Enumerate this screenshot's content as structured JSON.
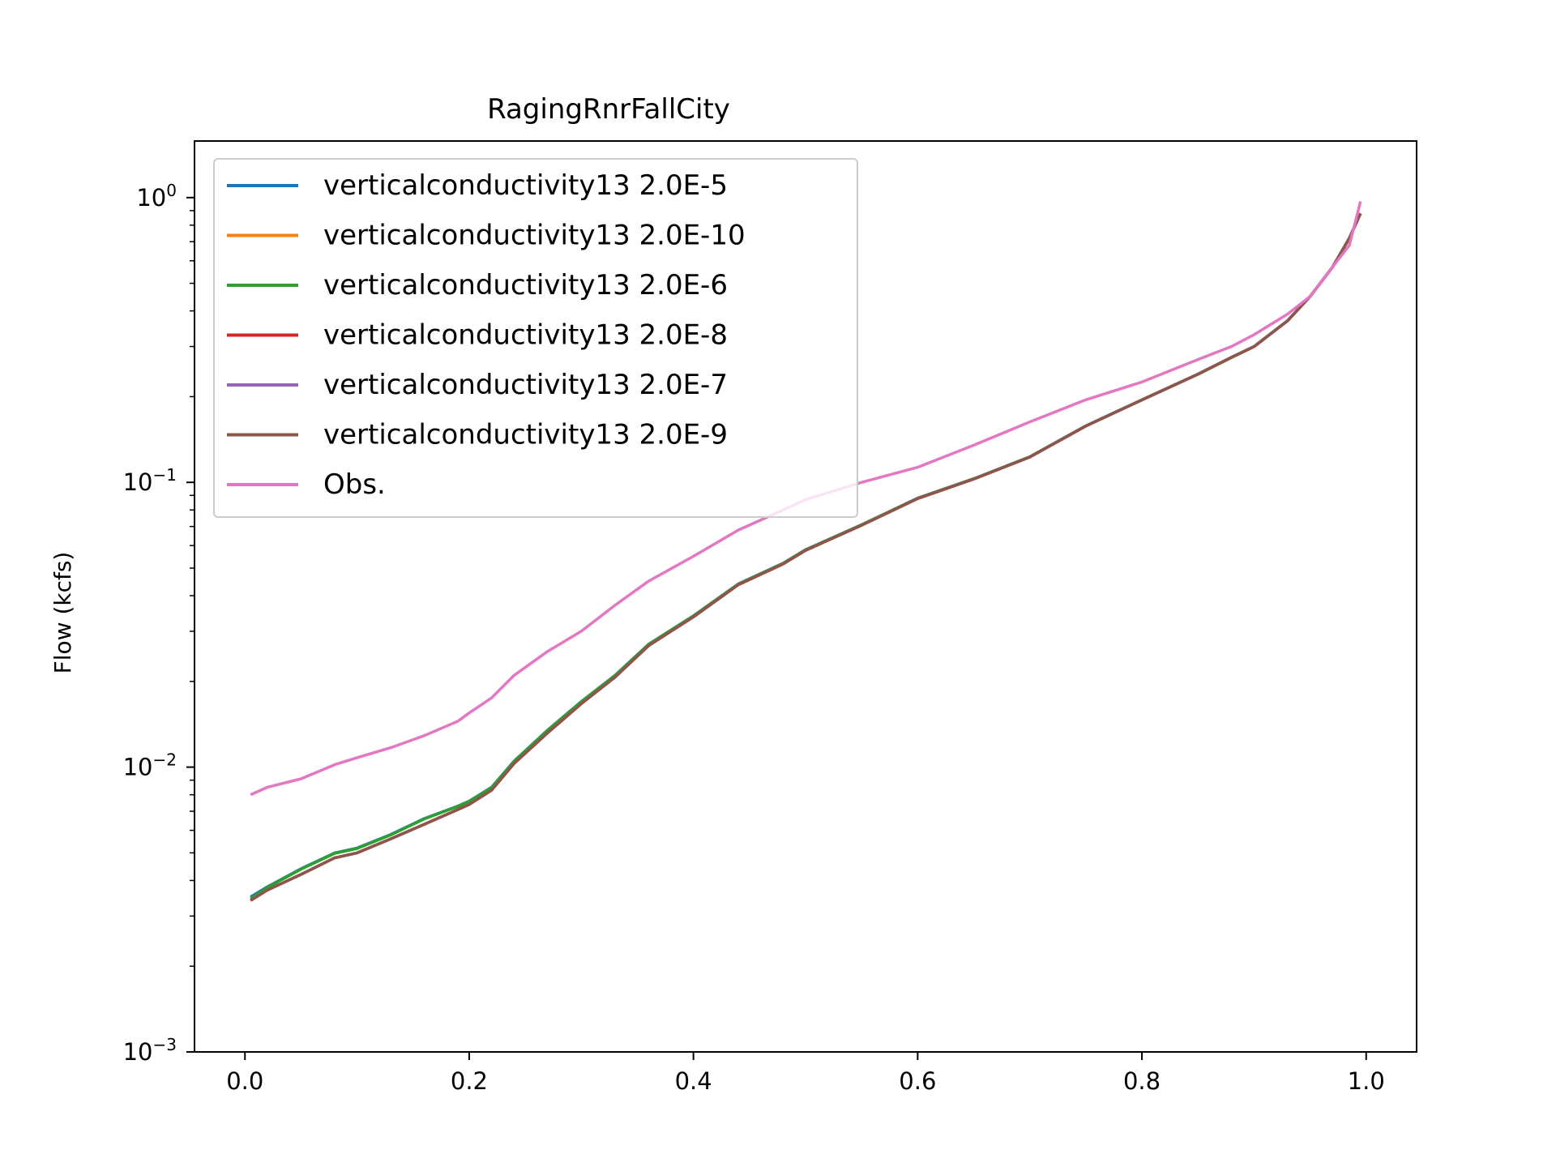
{
  "chart_data": {
    "type": "line",
    "title": "RagingRnrFallCity",
    "xlabel": "",
    "ylabel": "Flow (kcfs)",
    "xlim": [
      -0.045,
      1.045
    ],
    "ylim": [
      0.001,
      1.58
    ],
    "yscale": "log",
    "grid": false,
    "legend_position": "top-left",
    "x_ticks": [
      {
        "value": 0.0,
        "label": "0.0"
      },
      {
        "value": 0.2,
        "label": "0.2"
      },
      {
        "value": 0.4,
        "label": "0.4"
      },
      {
        "value": 0.6,
        "label": "0.6"
      },
      {
        "value": 0.8,
        "label": "0.8"
      },
      {
        "value": 1.0,
        "label": "1.0"
      }
    ],
    "y_ticks": [
      {
        "value": 0.001,
        "base": "10",
        "exp": "−3"
      },
      {
        "value": 0.01,
        "base": "10",
        "exp": "−2"
      },
      {
        "value": 0.1,
        "base": "10",
        "exp": "−1"
      },
      {
        "value": 1,
        "base": "10",
        "exp": "0"
      }
    ],
    "x": [
      0.005,
      0.02,
      0.05,
      0.08,
      0.1,
      0.13,
      0.16,
      0.19,
      0.2,
      0.22,
      0.24,
      0.27,
      0.3,
      0.33,
      0.36,
      0.4,
      0.44,
      0.48,
      0.5,
      0.55,
      0.6,
      0.65,
      0.7,
      0.75,
      0.8,
      0.85,
      0.88,
      0.9,
      0.93,
      0.95,
      0.97,
      0.985,
      0.995
    ],
    "series": [
      {
        "name": "verticalconductivity13 2.0E-5",
        "color": "#1f77b4",
        "values": [
          0.0035,
          0.0038,
          0.0044,
          0.005,
          0.0052,
          0.0058,
          0.0066,
          0.0073,
          0.0076,
          0.0085,
          0.0105,
          0.0135,
          0.017,
          0.021,
          0.027,
          0.034,
          0.044,
          0.052,
          0.058,
          0.071,
          0.088,
          0.103,
          0.123,
          0.158,
          0.195,
          0.24,
          0.275,
          0.3,
          0.37,
          0.45,
          0.57,
          0.72,
          0.88
        ]
      },
      {
        "name": "verticalconductivity13 2.0E-10",
        "color": "#ff7f0e",
        "values": [
          0.0034,
          0.0037,
          0.0042,
          0.0048,
          0.005,
          0.0056,
          0.0063,
          0.0071,
          0.0074,
          0.0083,
          0.0103,
          0.0132,
          0.0167,
          0.0207,
          0.0267,
          0.0337,
          0.0437,
          0.0517,
          0.0577,
          0.0707,
          0.0877,
          0.1027,
          0.1227,
          0.1577,
          0.1947,
          0.2397,
          0.2747,
          0.2997,
          0.3697,
          0.4497,
          0.5697,
          0.7197,
          0.8797
        ]
      },
      {
        "name": "verticalconductivity13 2.0E-6",
        "color": "#2ca02c",
        "values": [
          0.00345,
          0.00378,
          0.00438,
          0.00498,
          0.00518,
          0.00578,
          0.00658,
          0.00728,
          0.00758,
          0.00848,
          0.01048,
          0.01348,
          0.01698,
          0.02098,
          0.02698,
          0.03398,
          0.04398,
          0.05198,
          0.05798,
          0.07098,
          0.08798,
          0.10298,
          0.12298,
          0.15798,
          0.19498,
          0.23998,
          0.27498,
          0.29998,
          0.36998,
          0.44998,
          0.56998,
          0.71998,
          0.87998
        ]
      },
      {
        "name": "verticalconductivity13 2.0E-8",
        "color": "#d62728",
        "values": [
          0.0034,
          0.0037,
          0.0042,
          0.0048,
          0.005,
          0.0056,
          0.0063,
          0.0071,
          0.0074,
          0.0083,
          0.0103,
          0.0132,
          0.0167,
          0.0207,
          0.0267,
          0.0337,
          0.0437,
          0.0517,
          0.0577,
          0.0707,
          0.0877,
          0.1027,
          0.1227,
          0.1577,
          0.1947,
          0.2397,
          0.2747,
          0.2997,
          0.3697,
          0.4497,
          0.5697,
          0.7197,
          0.8797
        ]
      },
      {
        "name": "verticalconductivity13 2.0E-7",
        "color": "#9467bd",
        "values": [
          0.0034,
          0.0037,
          0.0042,
          0.0048,
          0.005,
          0.0056,
          0.0063,
          0.0071,
          0.0074,
          0.0083,
          0.0103,
          0.0132,
          0.0167,
          0.0207,
          0.0267,
          0.0337,
          0.0437,
          0.0517,
          0.0577,
          0.0707,
          0.0877,
          0.1027,
          0.1227,
          0.1577,
          0.1947,
          0.2397,
          0.2747,
          0.2997,
          0.3697,
          0.4497,
          0.5697,
          0.7197,
          0.8797
        ]
      },
      {
        "name": "verticalconductivity13 2.0E-9",
        "color": "#8c564b",
        "values": [
          0.0034,
          0.0037,
          0.0042,
          0.0048,
          0.005,
          0.0056,
          0.0063,
          0.0071,
          0.0074,
          0.0083,
          0.0103,
          0.0132,
          0.0167,
          0.0207,
          0.0267,
          0.0337,
          0.0437,
          0.0517,
          0.0577,
          0.0707,
          0.0877,
          0.1027,
          0.1227,
          0.1577,
          0.1947,
          0.2397,
          0.2747,
          0.2997,
          0.3697,
          0.4497,
          0.5697,
          0.7197,
          0.8797
        ]
      },
      {
        "name": "Obs.",
        "color": "#e377c2",
        "values": [
          0.008,
          0.0085,
          0.0091,
          0.0102,
          0.0108,
          0.0117,
          0.0129,
          0.0145,
          0.0155,
          0.0175,
          0.021,
          0.0255,
          0.03,
          0.037,
          0.045,
          0.055,
          0.068,
          0.08,
          0.087,
          0.1,
          0.113,
          0.135,
          0.163,
          0.195,
          0.225,
          0.27,
          0.3,
          0.33,
          0.39,
          0.45,
          0.57,
          0.68,
          0.97
        ]
      }
    ]
  }
}
